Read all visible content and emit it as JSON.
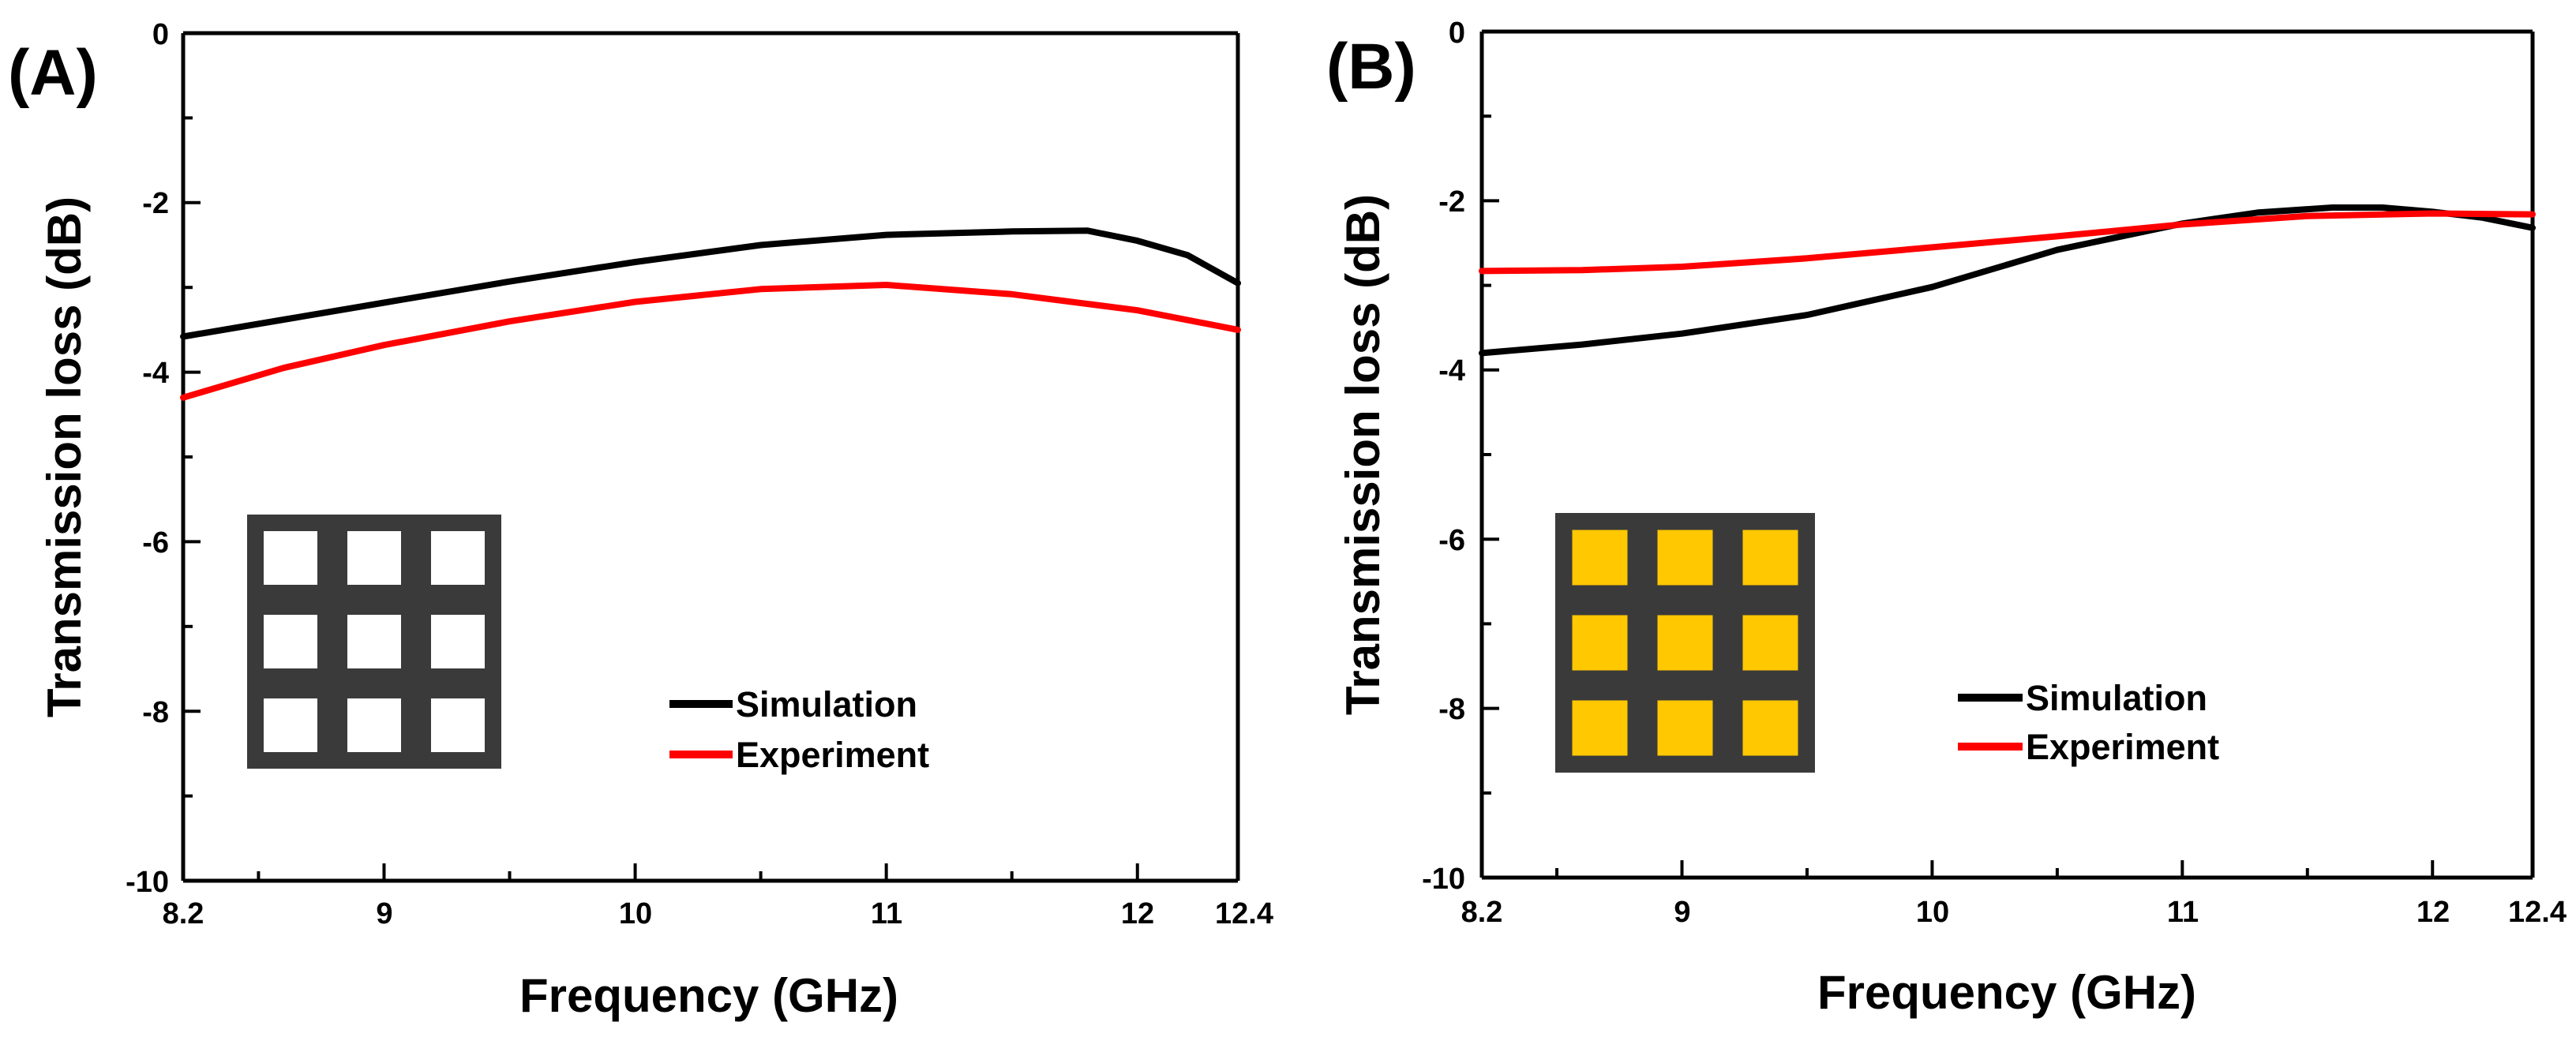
{
  "chart_data": [
    {
      "type": "line",
      "panel_label": "(A)",
      "title": "",
      "xlabel": "Frequency (GHz)",
      "ylabel": "Transmission loss (dB)",
      "xlim": [
        8.2,
        12.4
      ],
      "ylim": [
        -10,
        0
      ],
      "x_ticks": [
        8.2,
        9,
        10,
        11,
        12,
        12.4
      ],
      "x_tick_labels": [
        "8.2",
        "9",
        "10",
        "11",
        "12",
        "12.4"
      ],
      "y_ticks": [
        -10,
        -8,
        -6,
        -4,
        -2,
        0
      ],
      "y_tick_labels": [
        "-10",
        "-8",
        "-6",
        "-4",
        "-2",
        "0"
      ],
      "legend_position": "lower-right",
      "inset": {
        "description": "grid pattern",
        "fill_color": "#ffffff",
        "frame_color": "#3a3a3a"
      },
      "series": [
        {
          "name": "Simulation",
          "color": "#000000",
          "x": [
            8.2,
            8.6,
            9.0,
            9.5,
            10.0,
            10.5,
            11.0,
            11.5,
            11.8,
            12.0,
            12.2,
            12.4
          ],
          "values": [
            -3.58,
            -3.38,
            -3.18,
            -2.93,
            -2.7,
            -2.5,
            -2.38,
            -2.34,
            -2.33,
            -2.45,
            -2.62,
            -2.95
          ]
        },
        {
          "name": "Experiment",
          "color": "#ff0000",
          "x": [
            8.2,
            8.6,
            9.0,
            9.5,
            10.0,
            10.5,
            11.0,
            11.5,
            12.0,
            12.4
          ],
          "values": [
            -4.3,
            -3.95,
            -3.68,
            -3.4,
            -3.17,
            -3.02,
            -2.97,
            -3.08,
            -3.27,
            -3.5
          ]
        }
      ]
    },
    {
      "type": "line",
      "panel_label": "(B)",
      "title": "",
      "xlabel": "Frequency (GHz)",
      "ylabel": "Transmission loss (dB)",
      "xlim": [
        8.2,
        12.4
      ],
      "ylim": [
        -10,
        0
      ],
      "x_ticks": [
        8.2,
        9,
        10,
        11,
        12,
        12.4
      ],
      "x_tick_labels": [
        "8.2",
        "9",
        "10",
        "11",
        "12",
        "12.4"
      ],
      "y_ticks": [
        -10,
        -8,
        -6,
        -4,
        -2,
        0
      ],
      "y_tick_labels": [
        "-10",
        "-8",
        "-6",
        "-4",
        "-2",
        "0"
      ],
      "legend_position": "lower-right",
      "inset": {
        "description": "grid pattern",
        "fill_color": "#ffc800",
        "frame_color": "#3a3a3a"
      },
      "series": [
        {
          "name": "Simulation",
          "color": "#000000",
          "x": [
            8.2,
            8.6,
            9.0,
            9.5,
            10.0,
            10.5,
            11.0,
            11.3,
            11.6,
            11.8,
            12.0,
            12.2,
            12.4
          ],
          "values": [
            -3.8,
            -3.7,
            -3.57,
            -3.35,
            -3.02,
            -2.58,
            -2.27,
            -2.14,
            -2.08,
            -2.08,
            -2.13,
            -2.2,
            -2.32
          ]
        },
        {
          "name": "Experiment",
          "color": "#ff0000",
          "x": [
            8.2,
            8.6,
            9.0,
            9.5,
            10.0,
            10.5,
            11.0,
            11.5,
            12.0,
            12.4
          ],
          "values": [
            -2.83,
            -2.82,
            -2.78,
            -2.68,
            -2.55,
            -2.42,
            -2.28,
            -2.18,
            -2.15,
            -2.16
          ]
        }
      ]
    }
  ]
}
